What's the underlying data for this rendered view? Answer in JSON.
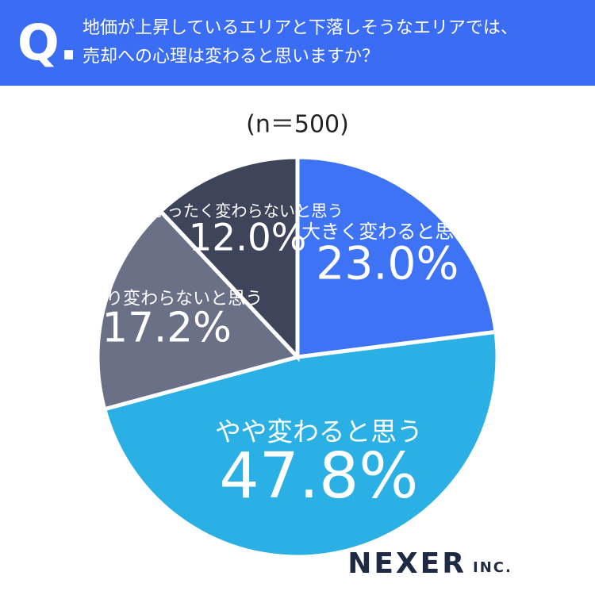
{
  "header": {
    "mark": "Q.",
    "question": "地価が上昇しているエリアと下落しそうなエリアでは、売却への心理は変わると思いますか？"
  },
  "chart_data": {
    "type": "pie",
    "subtitle": "(n＝500)",
    "categories": [
      "大きく変わると思う",
      "やや変わると思う",
      "あまり変わらないと思う",
      "まったく変わらないと思う"
    ],
    "values": [
      23.0,
      47.8,
      17.2,
      12.0
    ],
    "value_labels": [
      "23.0%",
      "47.8%",
      "17.2%",
      "12.0%"
    ],
    "colors": [
      "#3d73f4",
      "#2bb0e5",
      "#6a7086",
      "#3e4459"
    ]
  },
  "brand": {
    "name": "NEXER",
    "suffix": "INC."
  }
}
